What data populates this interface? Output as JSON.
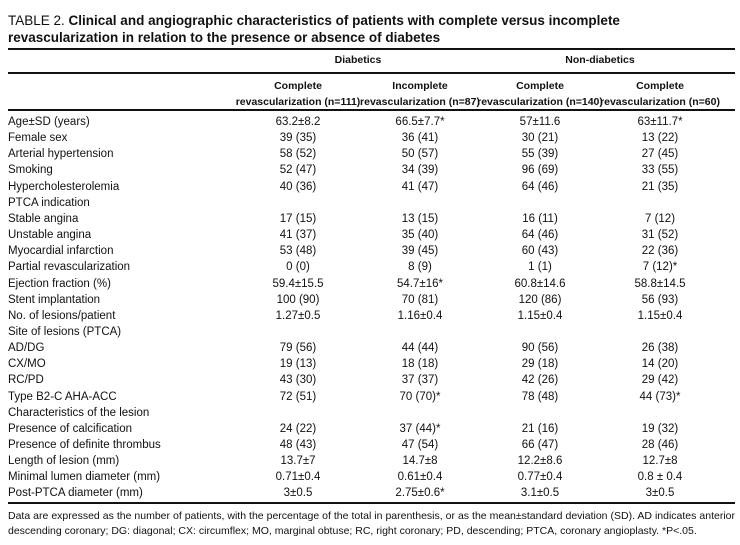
{
  "title": {
    "label": "TABLE 2.",
    "text": "Clinical and angiographic characteristics of patients with complete versus incomplete revascularization in relation to the presence or absence of diabetes"
  },
  "groups": [
    "Diabetics",
    "Non-diabetics"
  ],
  "columns": [
    {
      "line1": "Complete",
      "line2": "revascularization (n=111)"
    },
    {
      "line1": "Incomplete",
      "line2": "revascularization (n=87)"
    },
    {
      "line1": "Complete",
      "line2": "revascularization (n=140)"
    },
    {
      "line1": "Complete",
      "line2": "revascularization (n=60)"
    }
  ],
  "rows": [
    {
      "label": "Age±SD (years)",
      "values": [
        "63.2±8.2",
        "66.5±7.7*",
        "57±11.6",
        "63±11.7*"
      ]
    },
    {
      "label": "Female sex",
      "values": [
        "39 (35)",
        "36 (41)",
        "30 (21)",
        "13 (22)"
      ]
    },
    {
      "label": "Arterial hypertension",
      "values": [
        "58 (52)",
        "50 (57)",
        "55 (39)",
        "27 (45)"
      ]
    },
    {
      "label": "Smoking",
      "values": [
        "52 (47)",
        "34 (39)",
        "96 (69)",
        "33 (55)"
      ]
    },
    {
      "label": "Hypercholesterolemia",
      "values": [
        "40 (36)",
        "41 (47)",
        "64 (46)",
        "21 (35)"
      ]
    },
    {
      "label": "PTCA indication",
      "values": [
        "",
        "",
        "",
        ""
      ]
    },
    {
      "label": "Stable angina",
      "values": [
        "17 (15)",
        "13 (15)",
        "16 (11)",
        "7 (12)"
      ]
    },
    {
      "label": "Unstable angina",
      "values": [
        "41 (37)",
        "35 (40)",
        "64 (46)",
        "31 (52)"
      ]
    },
    {
      "label": "Myocardial infarction",
      "values": [
        "53 (48)",
        "39 (45)",
        "60 (43)",
        "22 (36)"
      ]
    },
    {
      "label": "Partial revascularization",
      "values": [
        "0 (0)",
        "8 (9)",
        "1 (1)",
        "7 (12)*"
      ]
    },
    {
      "label": "Ejection fraction (%)",
      "values": [
        "59.4±15.5",
        "54.7±16*",
        "60.8±14.6",
        "58.8±14.5"
      ]
    },
    {
      "label": "Stent implantation",
      "values": [
        "100 (90)",
        "70 (81)",
        "120 (86)",
        "56 (93)"
      ]
    },
    {
      "label": "No. of lesions/patient",
      "values": [
        "1.27±0.5",
        "1.16±0.4",
        "1.15±0.4",
        "1.15±0.4"
      ]
    },
    {
      "label": "Site of lesions (PTCA)",
      "values": [
        "",
        "",
        "",
        ""
      ]
    },
    {
      "label": "AD/DG",
      "values": [
        "79 (56)",
        "44 (44)",
        "90 (56)",
        "26 (38)"
      ]
    },
    {
      "label": "CX/MO",
      "values": [
        "19 (13)",
        "18 (18)",
        "29 (18)",
        "14 (20)"
      ]
    },
    {
      "label": "RC/PD",
      "values": [
        "43 (30)",
        "37 (37)",
        "42 (26)",
        "29 (42)"
      ]
    },
    {
      "label": "Type B2-C AHA-ACC",
      "values": [
        "72 (51)",
        "70 (70)*",
        "78 (48)",
        "44 (73)*"
      ]
    },
    {
      "label": "Characteristics of the lesion",
      "values": [
        "",
        "",
        "",
        ""
      ]
    },
    {
      "label": "Presence of calcification",
      "values": [
        "24 (22)",
        "37 (44)*",
        "21 (16)",
        "19 (32)"
      ]
    },
    {
      "label": "Presence of definite thrombus",
      "values": [
        "48 (43)",
        "47 (54)",
        "66 (47)",
        "28 (46)"
      ]
    },
    {
      "label": "Length of lesion (mm)",
      "values": [
        "13.7±7",
        "14.7±8",
        "12.2±8.6",
        "12.7±8"
      ]
    },
    {
      "label": "Minimal lumen diameter (mm)",
      "values": [
        "0.71±0.4",
        "0.61±0.4",
        "0.77±0.4",
        "0.8 ± 0.4"
      ]
    },
    {
      "label": "Post-PTCA diameter (mm)",
      "values": [
        "3±0.5",
        "2.75±0.6*",
        "3.1±0.5",
        "3±0.5"
      ]
    }
  ],
  "footnote": "Data are expressed as the number of patients, with the percentage of the total in parenthesis, or as the mean±standard deviation (SD). AD indicates anterior descending coronary; DG: diagonal; CX: circumflex; MO, marginal obtuse; RC, right coronary; PD, descending; PTCA, coronary angioplasty. *P<.05."
}
